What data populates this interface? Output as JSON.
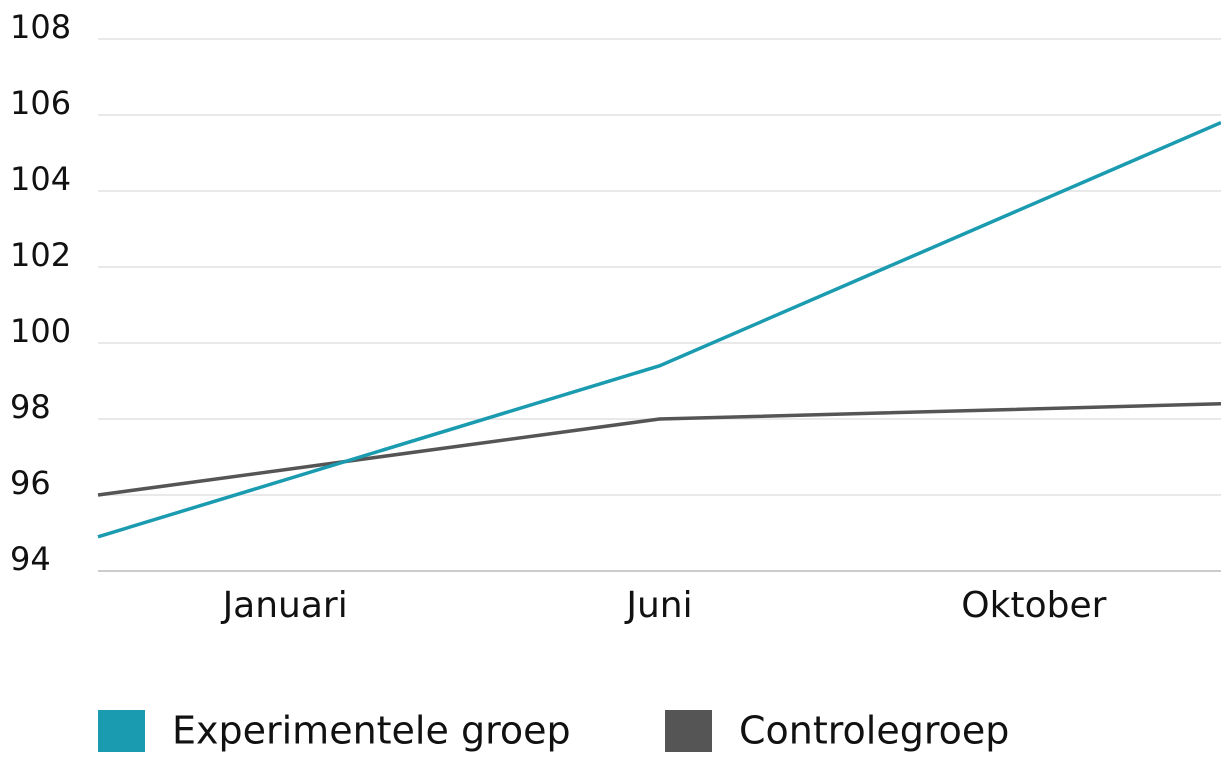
{
  "chart_data": {
    "type": "line",
    "categories": [
      "Januari",
      "Juni",
      "Oktober"
    ],
    "series": [
      {
        "name": "Experimentele groep",
        "color": "#1a9bb0",
        "values": [
          94.9,
          99.4,
          105.8
        ]
      },
      {
        "name": "Controlegroep",
        "color": "#555555",
        "values": [
          96.0,
          98.0,
          98.4
        ]
      }
    ],
    "ylim": [
      94,
      108
    ],
    "yticks": [
      94,
      96,
      98,
      100,
      102,
      104,
      106,
      108
    ],
    "grid": true,
    "legend": "bottom"
  }
}
